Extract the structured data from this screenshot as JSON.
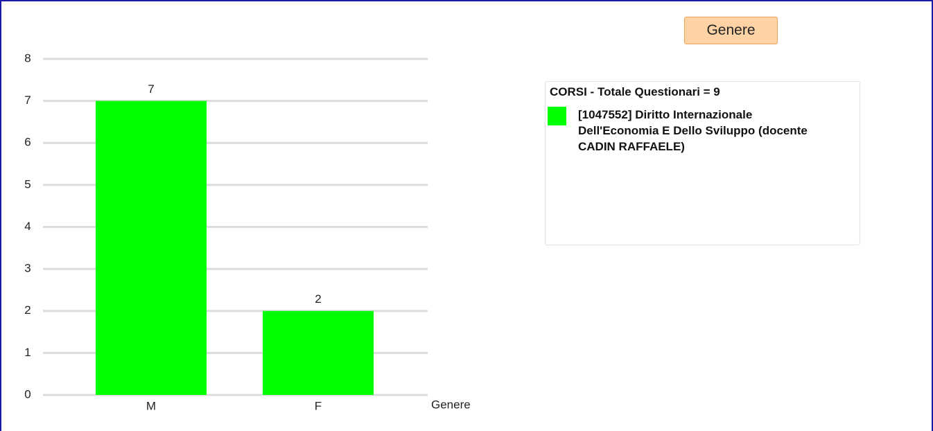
{
  "chart_data": {
    "type": "bar",
    "title": "Genere",
    "x_label": "Genere",
    "legend_title": "CORSI - Totale Questionari = 9",
    "categories": [
      "M",
      "F"
    ],
    "series": [
      {
        "name": "[1047552] Diritto Internazionale Dell'Economia E Dello Sviluppo (docente CADIN RAFFAELE)",
        "color": "#00ff00",
        "values": [
          7,
          2
        ]
      }
    ],
    "ylim": [
      0,
      8
    ],
    "yticks": [
      0,
      1,
      2,
      3,
      4,
      5,
      6,
      7,
      8
    ],
    "grid": true,
    "value_labels_shown": true
  }
}
